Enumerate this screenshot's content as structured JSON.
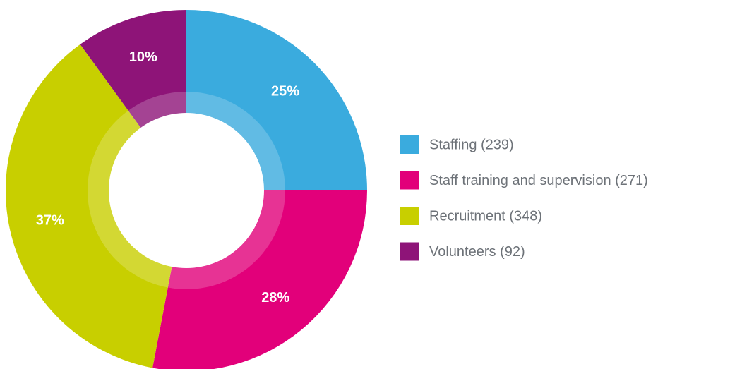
{
  "chart_data": {
    "type": "donut",
    "categories": [
      "Staffing (239)",
      "Staff training and supervision (271)",
      "Recruitment (348)",
      "Volunteers (92)"
    ],
    "values": [
      25,
      28,
      37,
      10
    ],
    "value_labels": [
      "25%",
      "28%",
      "37%",
      "10%"
    ],
    "colors": [
      "#3aabde",
      "#e2007a",
      "#c8cf00",
      "#8e1478"
    ],
    "legend": "right"
  }
}
